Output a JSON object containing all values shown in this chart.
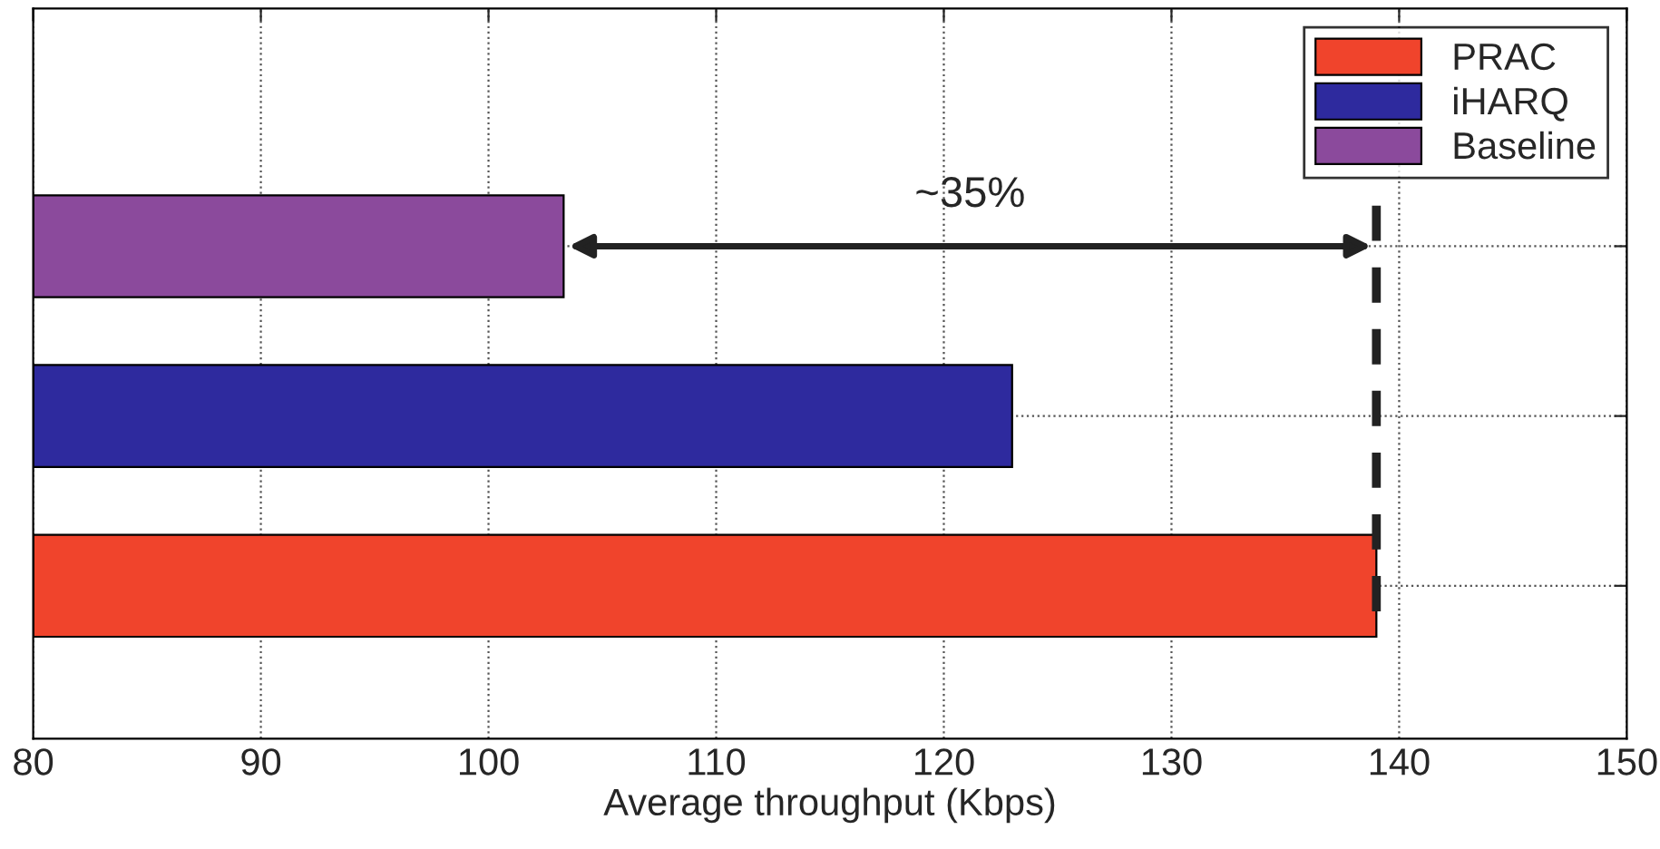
{
  "chart_data": {
    "type": "bar",
    "orientation": "horizontal",
    "xlabel": "Average throughput (Kbps)",
    "categories": [
      null,
      null,
      null
    ],
    "series": [
      {
        "name": "PRAC",
        "color": "#f0442c",
        "values": [
          null,
          null,
          139
        ]
      },
      {
        "name": "iHARQ",
        "color": "#2e2a9e",
        "values": [
          null,
          123,
          null
        ]
      },
      {
        "name": "Baseline",
        "color": "#8b4a9c",
        "values": [
          103.3,
          null,
          null
        ]
      }
    ],
    "xlim": [
      80,
      150
    ],
    "xticks": [
      80,
      90,
      100,
      110,
      120,
      130,
      140,
      150
    ],
    "ref_lines": [
      {
        "axis": "x",
        "value": 139,
        "color": "#222222",
        "line_style": "dashed"
      }
    ],
    "annotations": [
      "~35%"
    ],
    "grid": true,
    "legend": "top right"
  }
}
